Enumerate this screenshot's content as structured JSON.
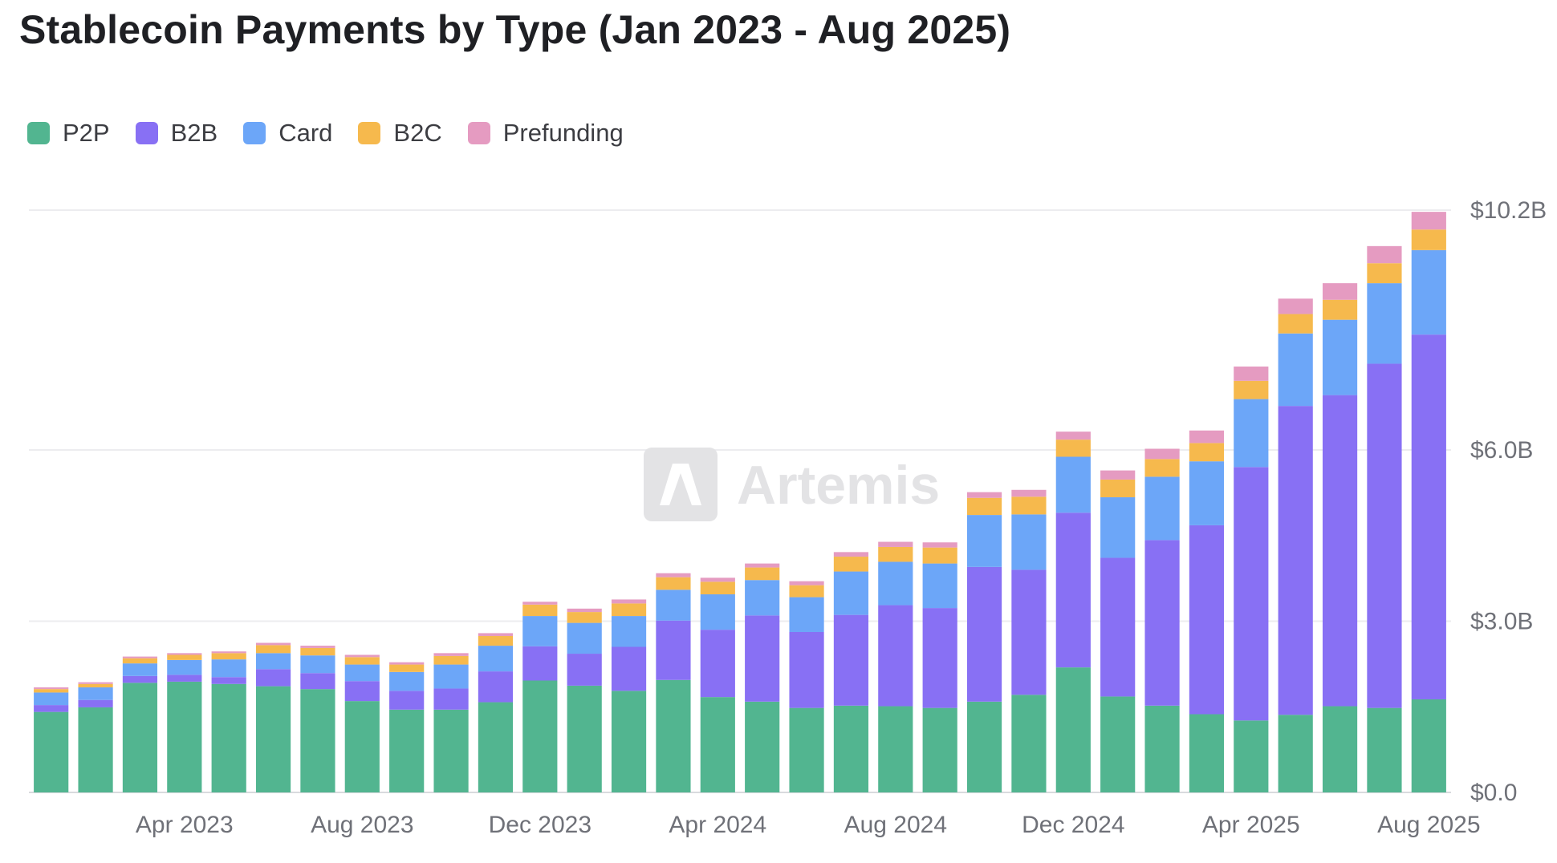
{
  "chart_data": {
    "type": "bar",
    "stacked": true,
    "title": "Stablecoin Payments by Type (Jan 2023 - Aug 2025)",
    "watermark": "Artemis",
    "categories": [
      "Jan 2023",
      "Feb 2023",
      "Mar 2023",
      "Apr 2023",
      "May 2023",
      "Jun 2023",
      "Jul 2023",
      "Aug 2023",
      "Sep 2023",
      "Oct 2023",
      "Nov 2023",
      "Dec 2023",
      "Jan 2024",
      "Feb 2024",
      "Mar 2024",
      "Apr 2024",
      "May 2024",
      "Jun 2024",
      "Jul 2024",
      "Aug 2024",
      "Sep 2024",
      "Oct 2024",
      "Nov 2024",
      "Dec 2024",
      "Jan 2025",
      "Feb 2025",
      "Mar 2025",
      "Apr 2025",
      "May 2025",
      "Jun 2025",
      "Jul 2025",
      "Aug 2025"
    ],
    "x_tick_labels": [
      {
        "category": "Apr 2023",
        "label": "Apr 2023"
      },
      {
        "category": "Aug 2023",
        "label": "Aug 2023"
      },
      {
        "category": "Dec 2023",
        "label": "Dec 2023"
      },
      {
        "category": "Apr 2024",
        "label": "Apr 2024"
      },
      {
        "category": "Aug 2024",
        "label": "Aug 2024"
      },
      {
        "category": "Dec 2024",
        "label": "Dec 2024"
      },
      {
        "category": "Apr 2025",
        "label": "Apr 2025"
      },
      {
        "category": "Aug 2025",
        "label": "Aug 2025"
      }
    ],
    "y_axis": {
      "position": "right",
      "unit": "B",
      "ylim": [
        0,
        10.2
      ],
      "ticks": [
        {
          "value": 0,
          "label": "$0.0"
        },
        {
          "value": 3.0,
          "label": "$3.0B"
        },
        {
          "value": 6.0,
          "label": "$6.0B"
        },
        {
          "value": 10.2,
          "label": "$10.2B"
        }
      ]
    },
    "grid": true,
    "legend_position": "top-left",
    "series": [
      {
        "name": "P2P",
        "color": "#52b590",
        "values": [
          1.41,
          1.49,
          1.92,
          1.94,
          1.9,
          1.86,
          1.81,
          1.6,
          1.45,
          1.45,
          1.58,
          1.96,
          1.87,
          1.78,
          1.97,
          1.67,
          1.59,
          1.48,
          1.52,
          1.51,
          1.48,
          1.59,
          1.71,
          2.19,
          1.68,
          1.52,
          1.37,
          1.26,
          1.36,
          1.51,
          1.48,
          1.63
        ]
      },
      {
        "name": "B2B",
        "color": "#8870f4",
        "values": [
          0.12,
          0.13,
          0.12,
          0.12,
          0.12,
          0.3,
          0.28,
          0.35,
          0.33,
          0.37,
          0.54,
          0.6,
          0.56,
          0.77,
          1.04,
          1.18,
          1.51,
          1.33,
          1.59,
          1.77,
          1.75,
          2.36,
          2.19,
          2.71,
          2.43,
          2.9,
          3.31,
          4.44,
          5.41,
          5.45,
          6.03,
          6.39
        ]
      },
      {
        "name": "Card",
        "color": "#6ca6f8",
        "values": [
          0.22,
          0.22,
          0.22,
          0.26,
          0.31,
          0.28,
          0.31,
          0.29,
          0.33,
          0.42,
          0.45,
          0.53,
          0.54,
          0.54,
          0.54,
          0.62,
          0.62,
          0.61,
          0.76,
          0.76,
          0.78,
          0.91,
          0.97,
          0.98,
          1.06,
          1.11,
          1.12,
          1.19,
          1.27,
          1.32,
          1.41,
          1.48
        ]
      },
      {
        "name": "B2C",
        "color": "#f6b94d",
        "values": [
          0.06,
          0.06,
          0.09,
          0.09,
          0.11,
          0.14,
          0.13,
          0.13,
          0.13,
          0.15,
          0.17,
          0.2,
          0.19,
          0.22,
          0.22,
          0.22,
          0.22,
          0.21,
          0.26,
          0.26,
          0.28,
          0.3,
          0.31,
          0.3,
          0.31,
          0.31,
          0.32,
          0.32,
          0.34,
          0.35,
          0.35,
          0.36
        ]
      },
      {
        "name": "Prefunding",
        "color": "#e59bc1",
        "values": [
          0.03,
          0.03,
          0.03,
          0.03,
          0.03,
          0.04,
          0.04,
          0.04,
          0.04,
          0.05,
          0.05,
          0.05,
          0.06,
          0.07,
          0.07,
          0.07,
          0.07,
          0.07,
          0.08,
          0.09,
          0.09,
          0.1,
          0.12,
          0.14,
          0.16,
          0.18,
          0.22,
          0.25,
          0.27,
          0.29,
          0.3,
          0.31
        ]
      }
    ]
  }
}
